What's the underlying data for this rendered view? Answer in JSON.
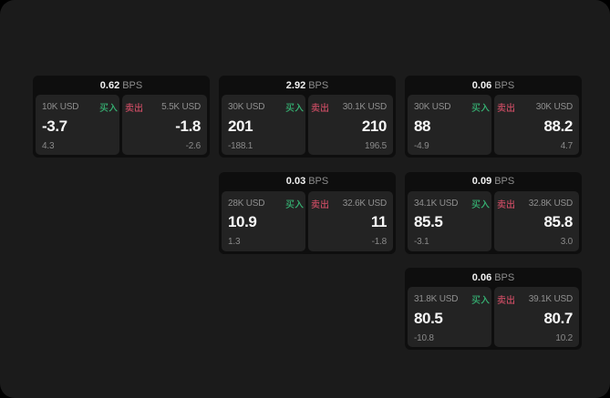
{
  "theme": {
    "page_background": "#000000",
    "panel_background": "#1b1b1b",
    "card_background": "#0e0e0e",
    "subcard_background": "#232323",
    "text_primary": "#f5f5f5",
    "text_secondary": "#8f8f8f",
    "buy_green": "#36b273",
    "sell_red": "#c74b62"
  },
  "labels": {
    "bps_unit": "BPS",
    "buy": "买入",
    "sell": "卖出"
  },
  "cards": [
    {
      "bps": "0.62",
      "row": 1,
      "col": 1,
      "buy": {
        "size": "10K USD",
        "value": "-3.7",
        "delta": "4.3"
      },
      "sell": {
        "size": "5.5K USD",
        "value": "-1.8",
        "delta": "-2.6"
      }
    },
    {
      "bps": "2.92",
      "row": 1,
      "col": 2,
      "buy": {
        "size": "30K USD",
        "value": "201",
        "delta": "-188.1"
      },
      "sell": {
        "size": "30.1K USD",
        "value": "210",
        "delta": "196.5"
      }
    },
    {
      "bps": "0.06",
      "row": 1,
      "col": 3,
      "buy": {
        "size": "30K USD",
        "value": "88",
        "delta": "-4.9"
      },
      "sell": {
        "size": "30K USD",
        "value": "88.2",
        "delta": "4.7"
      }
    },
    {
      "bps": "0.03",
      "row": 2,
      "col": 2,
      "buy": {
        "size": "28K USD",
        "value": "10.9",
        "delta": "1.3"
      },
      "sell": {
        "size": "32.6K USD",
        "value": "11",
        "delta": "-1.8"
      }
    },
    {
      "bps": "0.09",
      "row": 2,
      "col": 3,
      "buy": {
        "size": "34.1K USD",
        "value": "85.5",
        "delta": "-3.1"
      },
      "sell": {
        "size": "32.8K USD",
        "value": "85.8",
        "delta": "3.0"
      }
    },
    {
      "bps": "0.06",
      "row": 3,
      "col": 3,
      "buy": {
        "size": "31.8K USD",
        "value": "80.5",
        "delta": "-10.8"
      },
      "sell": {
        "size": "39.1K USD",
        "value": "80.7",
        "delta": "10.2"
      }
    }
  ]
}
